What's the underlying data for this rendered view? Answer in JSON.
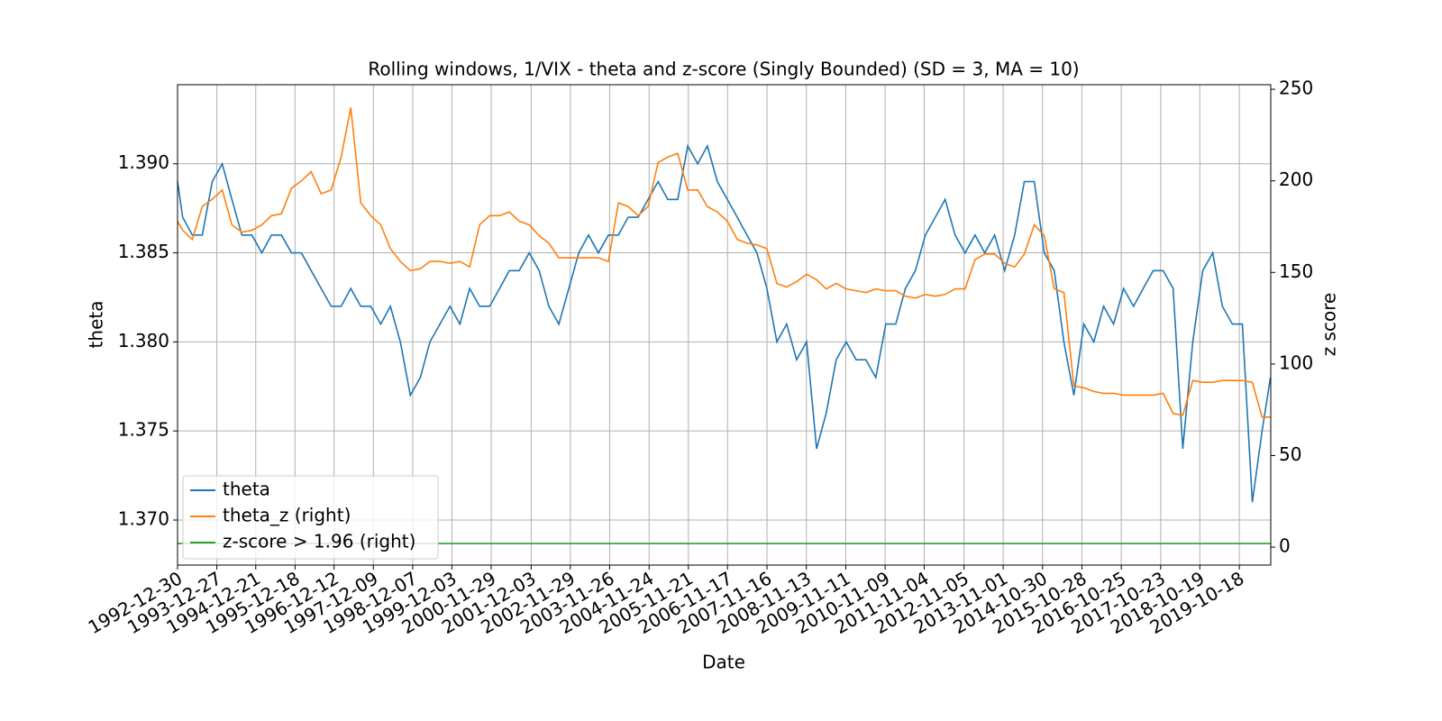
{
  "chart_data": {
    "type": "line",
    "title": "Rolling windows, 1/VIX - theta and z-score (Singly Bounded) (SD = 3, MA = 10)",
    "xlabel": "Date",
    "ylabel": "theta",
    "y2label": "z score",
    "xlim": [
      "1992-12-30",
      "2020-08-03"
    ],
    "xticks": [
      "1992-12-30",
      "1993-12-27",
      "1994-12-21",
      "1995-12-18",
      "1996-12-12",
      "1997-12-09",
      "1998-12-07",
      "1999-12-03",
      "2000-11-29",
      "2001-12-03",
      "2002-11-29",
      "2003-11-26",
      "2004-11-24",
      "2005-11-21",
      "2006-11-17",
      "2007-11-16",
      "2008-11-13",
      "2009-11-11",
      "2010-11-09",
      "2011-11-04",
      "2012-11-05",
      "2013-11-01",
      "2014-10-30",
      "2015-10-28",
      "2016-10-25",
      "2017-10-23",
      "2018-10-19",
      "2019-10-18"
    ],
    "ylim": [
      1.36747,
      1.39444
    ],
    "yticks": [
      {
        "value": 1.37,
        "label": "1.370"
      },
      {
        "value": 1.375,
        "label": "1.375"
      },
      {
        "value": 1.38,
        "label": "1.380"
      },
      {
        "value": 1.385,
        "label": "1.385"
      },
      {
        "value": 1.39,
        "label": "1.390"
      }
    ],
    "y2lim": [
      -9.8,
      252.5
    ],
    "y2ticks": [
      0,
      50,
      100,
      150,
      200,
      250
    ],
    "grid": true,
    "legend": "lower left",
    "x": [
      "1992-12-30",
      "1993-02-15",
      "1993-05-15",
      "1993-08-15",
      "1993-11-15",
      "1994-02-15",
      "1994-05-15",
      "1994-08-15",
      "1994-11-15",
      "1995-02-15",
      "1995-05-15",
      "1995-08-15",
      "1995-11-15",
      "1996-02-15",
      "1996-05-15",
      "1996-08-15",
      "1996-11-15",
      "1997-02-15",
      "1997-05-15",
      "1997-08-15",
      "1997-11-15",
      "1998-02-15",
      "1998-05-15",
      "1998-08-15",
      "1998-11-15",
      "1999-02-15",
      "1999-05-15",
      "1999-08-15",
      "1999-11-15",
      "2000-02-15",
      "2000-05-15",
      "2000-08-15",
      "2000-11-15",
      "2001-02-15",
      "2001-05-15",
      "2001-08-15",
      "2001-11-15",
      "2002-02-15",
      "2002-05-15",
      "2002-08-15",
      "2002-11-15",
      "2003-02-15",
      "2003-05-15",
      "2003-08-15",
      "2003-11-15",
      "2004-02-15",
      "2004-05-15",
      "2004-08-15",
      "2004-11-15",
      "2005-02-15",
      "2005-05-15",
      "2005-08-15",
      "2005-11-15",
      "2006-02-15",
      "2006-05-15",
      "2006-08-15",
      "2006-11-15",
      "2007-02-15",
      "2007-05-15",
      "2007-08-15",
      "2007-11-15",
      "2008-02-15",
      "2008-05-15",
      "2008-08-15",
      "2008-11-15",
      "2009-02-15",
      "2009-05-15",
      "2009-08-15",
      "2009-11-15",
      "2010-02-15",
      "2010-05-15",
      "2010-08-15",
      "2010-11-15",
      "2011-02-15",
      "2011-05-15",
      "2011-08-15",
      "2011-11-15",
      "2012-02-15",
      "2012-05-15",
      "2012-08-15",
      "2012-11-15",
      "2013-02-15",
      "2013-05-15",
      "2013-08-15",
      "2013-11-15",
      "2014-02-15",
      "2014-05-15",
      "2014-08-15",
      "2014-11-15",
      "2015-02-15",
      "2015-05-15",
      "2015-08-15",
      "2015-11-15",
      "2016-02-15",
      "2016-05-15",
      "2016-08-15",
      "2016-11-15",
      "2017-02-15",
      "2017-05-15",
      "2017-08-15",
      "2017-11-15",
      "2018-02-15",
      "2018-05-15",
      "2018-08-15",
      "2018-11-15",
      "2019-02-15",
      "2019-05-15",
      "2019-08-15",
      "2019-11-15",
      "2020-02-15",
      "2020-05-15",
      "2020-07-31"
    ],
    "series": [
      {
        "name": "theta",
        "color": "#1f77b4",
        "values": [
          1.389,
          1.387,
          1.386,
          1.386,
          1.389,
          1.39,
          1.388,
          1.386,
          1.386,
          1.385,
          1.386,
          1.386,
          1.385,
          1.385,
          1.384,
          1.383,
          1.382,
          1.382,
          1.383,
          1.382,
          1.382,
          1.381,
          1.382,
          1.38,
          1.377,
          1.378,
          1.38,
          1.381,
          1.382,
          1.381,
          1.383,
          1.382,
          1.382,
          1.383,
          1.384,
          1.384,
          1.385,
          1.384,
          1.382,
          1.381,
          1.383,
          1.385,
          1.386,
          1.385,
          1.386,
          1.386,
          1.387,
          1.387,
          1.388,
          1.389,
          1.388,
          1.388,
          1.391,
          1.39,
          1.391,
          1.389,
          1.388,
          1.387,
          1.386,
          1.385,
          1.383,
          1.38,
          1.381,
          1.379,
          1.38,
          1.374,
          1.376,
          1.379,
          1.38,
          1.379,
          1.379,
          1.378,
          1.381,
          1.381,
          1.383,
          1.384,
          1.386,
          1.387,
          1.388,
          1.386,
          1.385,
          1.386,
          1.385,
          1.386,
          1.384,
          1.386,
          1.389,
          1.389,
          1.385,
          1.384,
          1.38,
          1.377,
          1.381,
          1.38,
          1.382,
          1.381,
          1.383,
          1.382,
          1.383,
          1.384,
          1.384,
          1.383,
          1.374,
          1.38,
          1.384,
          1.385,
          1.382,
          1.381,
          1.381,
          1.371,
          1.375,
          1.378
        ]
      },
      {
        "name": "theta_z (right)",
        "color": "#ff7f0e",
        "axis": "y2",
        "values": [
          178,
          173,
          168,
          186,
          190,
          195,
          176,
          172,
          173,
          176,
          181,
          182,
          196,
          200,
          205,
          193,
          195,
          213,
          240,
          188,
          181,
          176,
          163,
          156,
          151,
          152,
          156,
          156,
          155,
          156,
          153,
          176,
          181,
          181,
          183,
          178,
          176,
          170,
          166,
          158,
          158,
          158,
          158,
          158,
          156,
          188,
          186,
          181,
          186,
          210,
          213,
          215,
          195,
          195,
          186,
          183,
          178,
          168,
          166,
          165,
          163,
          144,
          142,
          145,
          149,
          146,
          141,
          144,
          141,
          140,
          139,
          141,
          140,
          140,
          137,
          136,
          138,
          137,
          138,
          141,
          141,
          157,
          160,
          160,
          155,
          153,
          160,
          176,
          170,
          141,
          139,
          88,
          87,
          85,
          84,
          84,
          83,
          83,
          83,
          83,
          84,
          73,
          72,
          91,
          90,
          90,
          91,
          91,
          91,
          90,
          71,
          71
        ]
      },
      {
        "name": "z-score > 1.96 (right)",
        "color": "#2ca02c",
        "axis": "y2",
        "x": [
          "1992-12-30",
          "2020-08-03"
        ],
        "values": [
          1.96,
          1.96
        ]
      }
    ]
  }
}
